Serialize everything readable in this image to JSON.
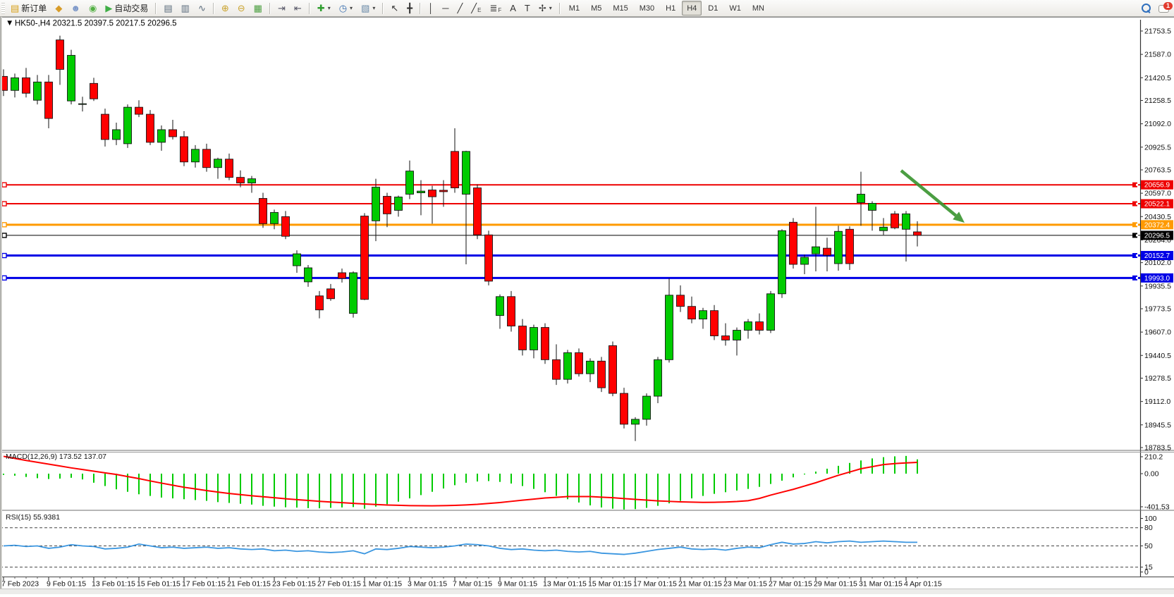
{
  "toolbar": {
    "chat_badge": "1",
    "items": [
      {
        "name": "new-order-button",
        "glyph": "▤",
        "color": "#d8a018",
        "label": "新订单",
        "interact": true
      },
      {
        "name": "charts-icon",
        "glyph": "◆",
        "color": "#d89c28",
        "interact": true
      },
      {
        "name": "profile-icon",
        "glyph": "☻",
        "color": "#7b96c8",
        "interact": true
      },
      {
        "name": "signals-icon",
        "glyph": "◉",
        "color": "#52b043",
        "interact": true
      },
      {
        "name": "auto-trading-button",
        "glyph": "▶",
        "color": "#3fae46",
        "label": "自动交易",
        "interact": true
      },
      {
        "sep": true
      },
      {
        "name": "bar-chart-icon",
        "glyph": "▤",
        "color": "#5a6b7c",
        "interact": true
      },
      {
        "name": "candlestick-chart-icon",
        "glyph": "▥",
        "color": "#5a6b7c",
        "interact": true
      },
      {
        "name": "line-chart-icon",
        "glyph": "∿",
        "color": "#5a6b7c",
        "interact": true
      },
      {
        "sep": true
      },
      {
        "name": "zoom-in-icon",
        "glyph": "⊕",
        "color": "#caa32c",
        "interact": true
      },
      {
        "name": "zoom-out-icon",
        "glyph": "⊖",
        "color": "#caa32c",
        "interact": true
      },
      {
        "name": "tile-windows-icon",
        "glyph": "▦",
        "color": "#4a9e3f",
        "interact": true
      },
      {
        "sep": true
      },
      {
        "name": "auto-scroll-icon",
        "glyph": "⇥",
        "color": "#556",
        "interact": true
      },
      {
        "name": "chart-shift-icon",
        "glyph": "⇤",
        "color": "#556",
        "interact": true
      },
      {
        "sep": true
      },
      {
        "name": "indicators-icon",
        "glyph": "✚",
        "color": "#2f9e2f",
        "caret": true,
        "interact": true
      },
      {
        "name": "period-icon",
        "glyph": "◷",
        "color": "#3a6fb0",
        "caret": true,
        "interact": true
      },
      {
        "name": "template-icon",
        "glyph": "▧",
        "color": "#6a8aa8",
        "caret": true,
        "interact": true
      },
      {
        "sep": true
      },
      {
        "name": "cursor-icon",
        "glyph": "↖",
        "color": "#333",
        "interact": true
      },
      {
        "name": "crosshair-icon",
        "glyph": "╋",
        "color": "#333",
        "interact": true
      },
      {
        "sep": true
      },
      {
        "name": "vertical-line-icon",
        "glyph": "│",
        "color": "#333",
        "interact": true
      },
      {
        "name": "horizontal-line-icon",
        "glyph": "─",
        "color": "#333",
        "interact": true
      },
      {
        "name": "trendline-icon",
        "glyph": "╱",
        "color": "#333",
        "interact": true
      },
      {
        "name": "equidistant-channel-icon",
        "glyph": "╱",
        "sub": "E",
        "color": "#333",
        "interact": true
      },
      {
        "name": "fibonacci-icon",
        "glyph": "≣",
        "sub": "F",
        "color": "#333",
        "interact": true
      },
      {
        "name": "text-icon",
        "glyph": "A",
        "color": "#333",
        "interact": true
      },
      {
        "name": "text-label-icon",
        "glyph": "T",
        "color": "#333",
        "interact": true
      },
      {
        "name": "arrows-icon",
        "glyph": "✢",
        "color": "#333",
        "caret": true,
        "interact": true
      },
      {
        "sep": true
      }
    ],
    "timeframes": [
      "M1",
      "M5",
      "M15",
      "M30",
      "H1",
      "H4",
      "D1",
      "W1",
      "MN"
    ],
    "active_timeframe": "H4"
  },
  "chart": {
    "title": "HK50-,H4  20321.5 20397.5 20217.5 20296.5",
    "collapse_icon": "▼"
  },
  "chart_data": {
    "type": "candlestick",
    "symbol": "HK50-",
    "timeframe": "H4",
    "current_bar": {
      "open": 20321.5,
      "high": 20397.5,
      "low": 20217.5,
      "close": 20296.5
    },
    "ylim": [
      18783.5,
      21753.5
    ],
    "grid": false,
    "y_ticks": [
      "21753.5",
      "21587.0",
      "21420.5",
      "21258.5",
      "21092.0",
      "20925.5",
      "20763.5",
      "20597.0",
      "20430.5",
      "20264.0",
      "20102.0",
      "19935.5",
      "19773.5",
      "19607.0",
      "19440.5",
      "19278.5",
      "19112.0",
      "18945.5",
      "18783.5"
    ],
    "x_labels": [
      "7 Feb 2023",
      "9 Feb 01:15",
      "13 Feb 01:15",
      "15 Feb 01:15",
      "17 Feb 01:15",
      "21 Feb 01:15",
      "23 Feb 01:15",
      "27 Feb 01:15",
      "1 Mar 01:15",
      "3 Mar 01:15",
      "7 Mar 01:15",
      "9 Mar 01:15",
      "13 Mar 01:15",
      "15 Mar 01:15",
      "17 Mar 01:15",
      "21 Mar 01:15",
      "23 Mar 01:15",
      "27 Mar 01:15",
      "29 Mar 01:15",
      "31 Mar 01:15",
      "4 Apr 01:15"
    ],
    "bars_per_label": 4,
    "candles": [
      [
        21430,
        21480,
        21290,
        21330
      ],
      [
        21330,
        21450,
        21280,
        21420
      ],
      [
        21420,
        21490,
        21280,
        21310
      ],
      [
        21260,
        21440,
        21230,
        21390
      ],
      [
        21390,
        21440,
        21060,
        21130
      ],
      [
        21690,
        21720,
        21370,
        21480
      ],
      [
        21255,
        21620,
        21230,
        21580
      ],
      [
        21230,
        21285,
        21180,
        21235
      ],
      [
        21380,
        21420,
        21255,
        21270
      ],
      [
        21160,
        21200,
        20930,
        20980
      ],
      [
        20980,
        21100,
        20940,
        21050
      ],
      [
        20950,
        21230,
        20920,
        21210
      ],
      [
        21210,
        21260,
        21140,
        21160
      ],
      [
        21160,
        21190,
        20940,
        20960
      ],
      [
        20960,
        21080,
        20900,
        21050
      ],
      [
        21050,
        21120,
        20980,
        21000
      ],
      [
        21000,
        21040,
        20790,
        20820
      ],
      [
        20820,
        20940,
        20780,
        20910
      ],
      [
        20910,
        20950,
        20750,
        20780
      ],
      [
        20780,
        20850,
        20700,
        20840
      ],
      [
        20840,
        20880,
        20690,
        20710
      ],
      [
        20710,
        20760,
        20640,
        20670
      ],
      [
        20670,
        20720,
        20600,
        20700
      ],
      [
        20560,
        20600,
        20350,
        20380
      ],
      [
        20380,
        20480,
        20340,
        20460
      ],
      [
        20430,
        20470,
        20270,
        20290
      ],
      [
        20080,
        20190,
        20030,
        20165
      ],
      [
        19965,
        20085,
        19930,
        20065
      ],
      [
        19865,
        19900,
        19705,
        19765
      ],
      [
        19915,
        19950,
        19830,
        19845
      ],
      [
        20030,
        20060,
        19960,
        19990
      ],
      [
        19740,
        20040,
        19710,
        20030
      ],
      [
        20434,
        20455,
        19835,
        19840
      ],
      [
        20400,
        20700,
        20255,
        20640
      ],
      [
        20575,
        20600,
        20355,
        20450
      ],
      [
        20475,
        20580,
        20430,
        20570
      ],
      [
        20590,
        20830,
        20555,
        20755
      ],
      [
        20600,
        20690,
        20440,
        20612
      ],
      [
        20620,
        20650,
        20380,
        20572
      ],
      [
        20618,
        20690,
        20500,
        20608
      ],
      [
        20895,
        21060,
        20600,
        20635
      ],
      [
        20590,
        20900,
        20090,
        20895
      ],
      [
        20635,
        20660,
        20270,
        20300
      ],
      [
        20300,
        20330,
        19940,
        19970
      ],
      [
        19725,
        19875,
        19630,
        19860
      ],
      [
        19860,
        19900,
        19610,
        19650
      ],
      [
        19650,
        19700,
        19440,
        19480
      ],
      [
        19480,
        19660,
        19420,
        19640
      ],
      [
        19640,
        19670,
        19380,
        19410
      ],
      [
        19410,
        19520,
        19230,
        19270
      ],
      [
        19270,
        19480,
        19240,
        19460
      ],
      [
        19460,
        19490,
        19290,
        19310
      ],
      [
        19310,
        19420,
        19250,
        19400
      ],
      [
        19400,
        19430,
        19180,
        19210
      ],
      [
        19510,
        19540,
        19150,
        19170
      ],
      [
        19170,
        19210,
        18920,
        18950
      ],
      [
        18950,
        19000,
        18830,
        18985
      ],
      [
        18985,
        19170,
        18940,
        19150
      ],
      [
        19150,
        19430,
        19100,
        19410
      ],
      [
        19410,
        19990,
        19390,
        19870
      ],
      [
        19870,
        19940,
        19750,
        19790
      ],
      [
        19790,
        19860,
        19670,
        19700
      ],
      [
        19700,
        19780,
        19630,
        19760
      ],
      [
        19760,
        19800,
        19550,
        19580
      ],
      [
        19580,
        19670,
        19510,
        19550
      ],
      [
        19550,
        19640,
        19440,
        19620
      ],
      [
        19620,
        19700,
        19560,
        19680
      ],
      [
        19680,
        19740,
        19590,
        19620
      ],
      [
        19620,
        19900,
        19600,
        19880
      ],
      [
        19880,
        20340,
        19850,
        20330
      ],
      [
        20390,
        20420,
        20060,
        20090
      ],
      [
        20090,
        20160,
        20020,
        20140
      ],
      [
        20165,
        20500,
        20040,
        20215
      ],
      [
        20205,
        20280,
        20040,
        20155
      ],
      [
        20095,
        20365,
        20045,
        20325
      ],
      [
        20340,
        20360,
        20050,
        20095
      ],
      [
        20530,
        20750,
        20365,
        20590
      ],
      [
        20475,
        20540,
        20330,
        20525
      ],
      [
        20330,
        20420,
        20300,
        20355
      ],
      [
        20450,
        20470,
        20340,
        20350
      ],
      [
        20340,
        20470,
        20110,
        20450
      ],
      [
        20321.5,
        20397.5,
        20217.5,
        20296.5
      ]
    ],
    "hlines": [
      {
        "price": 20656.9,
        "label": "20656.9",
        "color": "#ee0000",
        "width": 2
      },
      {
        "price": 20522.1,
        "label": "20522.1",
        "color": "#ee0000",
        "width": 2
      },
      {
        "price": 20372.4,
        "label": "20372.4",
        "color": "#ff9a00",
        "width": 3
      },
      {
        "price": 20296.5,
        "label": "20296.5",
        "color": "#000000",
        "width": 1
      },
      {
        "price": 20152.7,
        "label": "20152.7",
        "color": "#0000e6",
        "width": 3
      },
      {
        "price": 19993.0,
        "label": "19993.0",
        "color": "#0000e6",
        "width": 3
      }
    ],
    "arrow": {
      "from": [
        1278,
        242
      ],
      "to": [
        1368,
        316
      ],
      "color": "#3c9632"
    },
    "colors": {
      "bull": "#00cb00",
      "bear": "#ff0000",
      "wick": "#111111",
      "macd_hist": "#00cb00",
      "macd_signal": "#ff0000",
      "rsi_line": "#3a96e0"
    },
    "indicators": {
      "macd": {
        "label_full": "MACD(12,26,9) 173.52 137.07",
        "name": "MACD",
        "params": "12,26,9",
        "value_main": "173.52",
        "value_signal": "137.07",
        "axis": [
          "210.2",
          "0.00",
          "-401.53"
        ],
        "axis_values": [
          210.2,
          0,
          -401.53
        ],
        "histogram": [
          -15,
          -25,
          -40,
          -55,
          -65,
          -60,
          -50,
          -70,
          -110,
          -150,
          -190,
          -220,
          -250,
          -270,
          -290,
          -300,
          -310,
          -320,
          -330,
          -345,
          -355,
          -365,
          -375,
          -390,
          -400,
          -408,
          -412,
          -418,
          -420,
          -415,
          -410,
          -405,
          -425,
          -400,
          -370,
          -340,
          -300,
          -260,
          -220,
          -180,
          -140,
          -110,
          -95,
          -90,
          -100,
          -120,
          -150,
          -185,
          -225,
          -270,
          -310,
          -350,
          -385,
          -410,
          -425,
          -435,
          -430,
          -415,
          -390,
          -360,
          -330,
          -300,
          -270,
          -245,
          -225,
          -205,
          -185,
          -160,
          -125,
          -85,
          -45,
          -10,
          25,
          60,
          95,
          130,
          160,
          185,
          200,
          210,
          215,
          173.5
        ],
        "signal": [
          210,
          185,
          160,
          138,
          115,
          93,
          70,
          50,
          30,
          10,
          -10,
          -35,
          -60,
          -88,
          -115,
          -140,
          -165,
          -185,
          -205,
          -223,
          -240,
          -254,
          -268,
          -280,
          -292,
          -304,
          -315,
          -325,
          -335,
          -344,
          -352,
          -360,
          -368,
          -374,
          -380,
          -384,
          -388,
          -389,
          -390,
          -388,
          -385,
          -379,
          -372,
          -361,
          -350,
          -336,
          -322,
          -309,
          -295,
          -287,
          -278,
          -278,
          -278,
          -285,
          -292,
          -302,
          -312,
          -321,
          -330,
          -336,
          -342,
          -345,
          -348,
          -347,
          -344,
          -338,
          -328,
          -300,
          -260,
          -225,
          -190,
          -150,
          -110,
          -65,
          -20,
          20,
          60,
          85,
          110,
          122,
          130,
          137
        ]
      },
      "rsi": {
        "label_full": "RSI(15) 55.9381",
        "name": "RSI",
        "params": "15",
        "value": "55.9381",
        "levels": [
          80,
          50,
          15
        ],
        "axis": [
          "100",
          "80",
          "50",
          "15",
          "0"
        ],
        "axis_values": [
          100,
          80,
          50,
          15,
          0
        ],
        "values": [
          50,
          51,
          49,
          50,
          46,
          48,
          52,
          50,
          49,
          45,
          46,
          48,
          53,
          50,
          47,
          48,
          46,
          47,
          48,
          46,
          47,
          45,
          44,
          45,
          42,
          43,
          41,
          42,
          40,
          39,
          40,
          42,
          37,
          45,
          44,
          46,
          49,
          48,
          47,
          48,
          50,
          53,
          52,
          50,
          46,
          44,
          45,
          43,
          42,
          43,
          41,
          40,
          41,
          38,
          37,
          36,
          38,
          41,
          44,
          46,
          48,
          45,
          44,
          45,
          43,
          46,
          48,
          47,
          52,
          56,
          53,
          54,
          57,
          55,
          57,
          58,
          56,
          57,
          58,
          57,
          56,
          55.94
        ]
      }
    }
  }
}
